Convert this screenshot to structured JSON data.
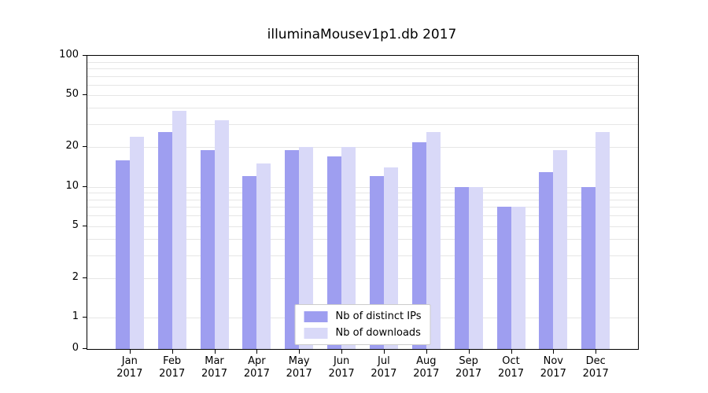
{
  "title": "illuminaMousev1p1.db 2017",
  "colors": {
    "ips_bar": "#9e9ef0",
    "downloads_bar": "#d9d9f8",
    "grid": "#e6e6e6",
    "axis": "#000000",
    "legend_border": "#cccccc",
    "background": "#ffffff"
  },
  "chart_data": {
    "type": "bar",
    "title": "illuminaMousev1p1.db 2017",
    "categories": [
      "Jan",
      "Feb",
      "Mar",
      "Apr",
      "May",
      "Jun",
      "Jul",
      "Aug",
      "Sep",
      "Oct",
      "Nov",
      "Dec"
    ],
    "year_label": "2017",
    "series": [
      {
        "name": "Nb of distinct IPs",
        "color": "#9e9ef0",
        "values": [
          16,
          26,
          19,
          12,
          19,
          17,
          12,
          22,
          10,
          7,
          13,
          10
        ]
      },
      {
        "name": "Nb of downloads",
        "color": "#d9d9f8",
        "values": [
          24,
          38,
          32,
          15,
          20,
          20,
          14,
          26,
          10,
          7,
          19,
          26
        ]
      }
    ],
    "yscale": "symlog",
    "ylim": [
      0,
      100
    ],
    "yticks": [
      "100",
      "50",
      "20",
      "10",
      "5",
      "2",
      "1",
      "0"
    ],
    "grid": true,
    "legend_position": "bottom-center"
  }
}
